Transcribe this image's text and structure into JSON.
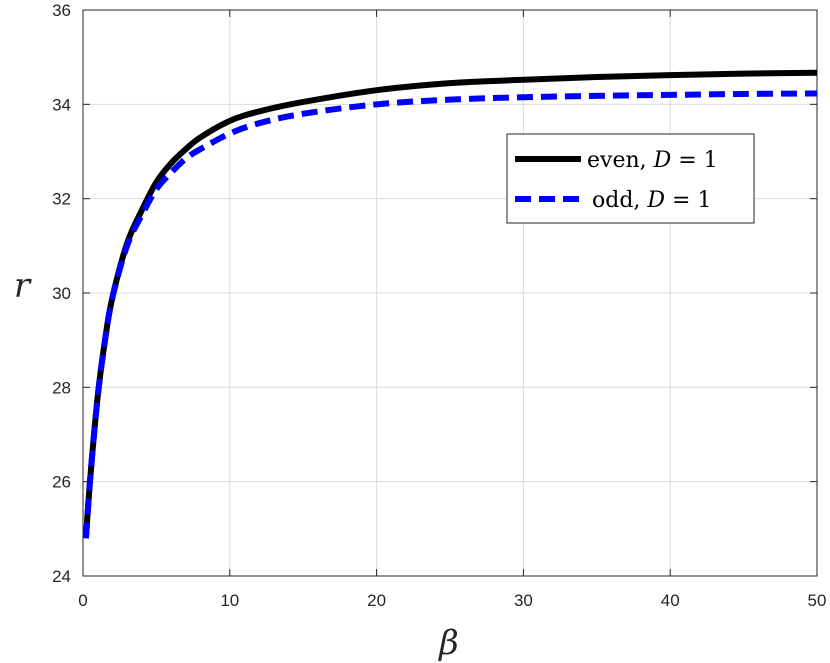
{
  "chart_data": {
    "type": "line",
    "title": "",
    "xlabel": "β",
    "ylabel": "r",
    "xlim": [
      0,
      50
    ],
    "ylim": [
      24,
      36
    ],
    "xticks": [
      0,
      10,
      20,
      30,
      40,
      50
    ],
    "yticks": [
      24,
      26,
      28,
      30,
      32,
      34,
      36
    ],
    "grid": true,
    "legend_position": "top-right",
    "series": [
      {
        "name": "even, D = 1",
        "color": "#000000",
        "dash": "solid",
        "x": [
          0.2,
          0.5,
          1,
          1.5,
          2,
          3,
          4,
          5,
          6,
          7,
          8,
          10,
          12,
          15,
          20,
          25,
          30,
          35,
          40,
          45,
          50
        ],
        "y": [
          24.8,
          26.1,
          27.8,
          29.0,
          29.9,
          31.05,
          31.75,
          32.35,
          32.75,
          33.05,
          33.3,
          33.65,
          33.85,
          34.05,
          34.3,
          34.45,
          34.52,
          34.58,
          34.62,
          34.65,
          34.67
        ]
      },
      {
        "name": "odd, D = 1",
        "color": "#0000ff",
        "dash": "dashed",
        "x": [
          0.2,
          0.5,
          1,
          1.5,
          2,
          3,
          4,
          5,
          6,
          7,
          8,
          10,
          12,
          15,
          20,
          25,
          30,
          35,
          40,
          45,
          50
        ],
        "y": [
          24.8,
          26.1,
          27.8,
          29.0,
          29.9,
          31.0,
          31.65,
          32.2,
          32.55,
          32.85,
          33.05,
          33.38,
          33.6,
          33.8,
          34.0,
          34.1,
          34.15,
          34.18,
          34.2,
          34.22,
          34.23
        ]
      }
    ]
  },
  "legend": {
    "even_prefix": "even, ",
    "odd_prefix": "odd, ",
    "d_symbol": "D",
    "d_value": " = 1"
  }
}
